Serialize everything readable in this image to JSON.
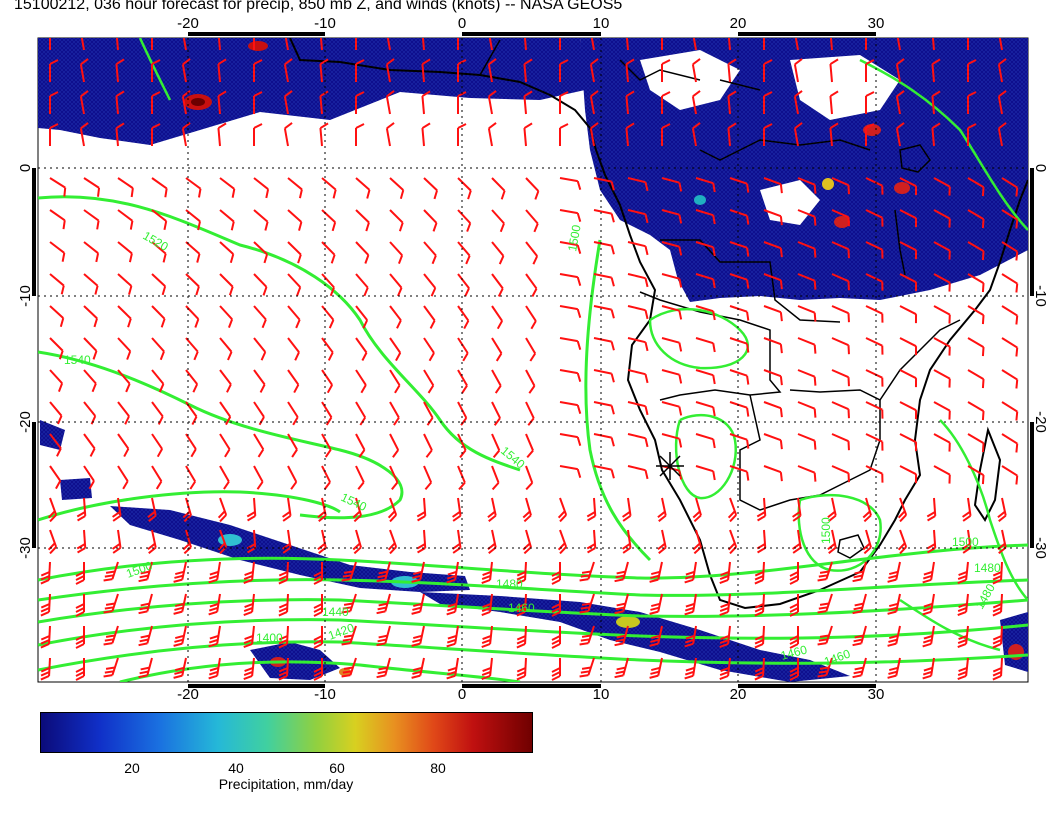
{
  "title": "15100212, 036 hour forecast for precip, 850 mb Z, and winds (knots) -- NASA GEOS5",
  "map": {
    "lon_ticks": [
      "-20",
      "-10",
      "0",
      "10",
      "20",
      "30"
    ],
    "lat_ticks": [
      "0",
      "-10",
      "-20",
      "-30"
    ],
    "contour_labels": [
      "1520",
      "1540",
      "1540",
      "1540",
      "1500",
      "1500",
      "1480",
      "1460",
      "1440",
      "1420",
      "1400",
      "1500",
      "1480",
      "1460",
      "1480",
      "1500",
      "1460"
    ],
    "colors": {
      "coastline": "#000000",
      "contour": "#33ee33",
      "wind_barb": "#ff1111",
      "precip_low": "#0b0b8a",
      "precip_high": "#7a0000",
      "grid": "#000000"
    }
  },
  "colorbar": {
    "ticks": [
      "20",
      "40",
      "60",
      "80"
    ],
    "label": "Precipitation, mm/day",
    "min": 0,
    "max": 100
  }
}
